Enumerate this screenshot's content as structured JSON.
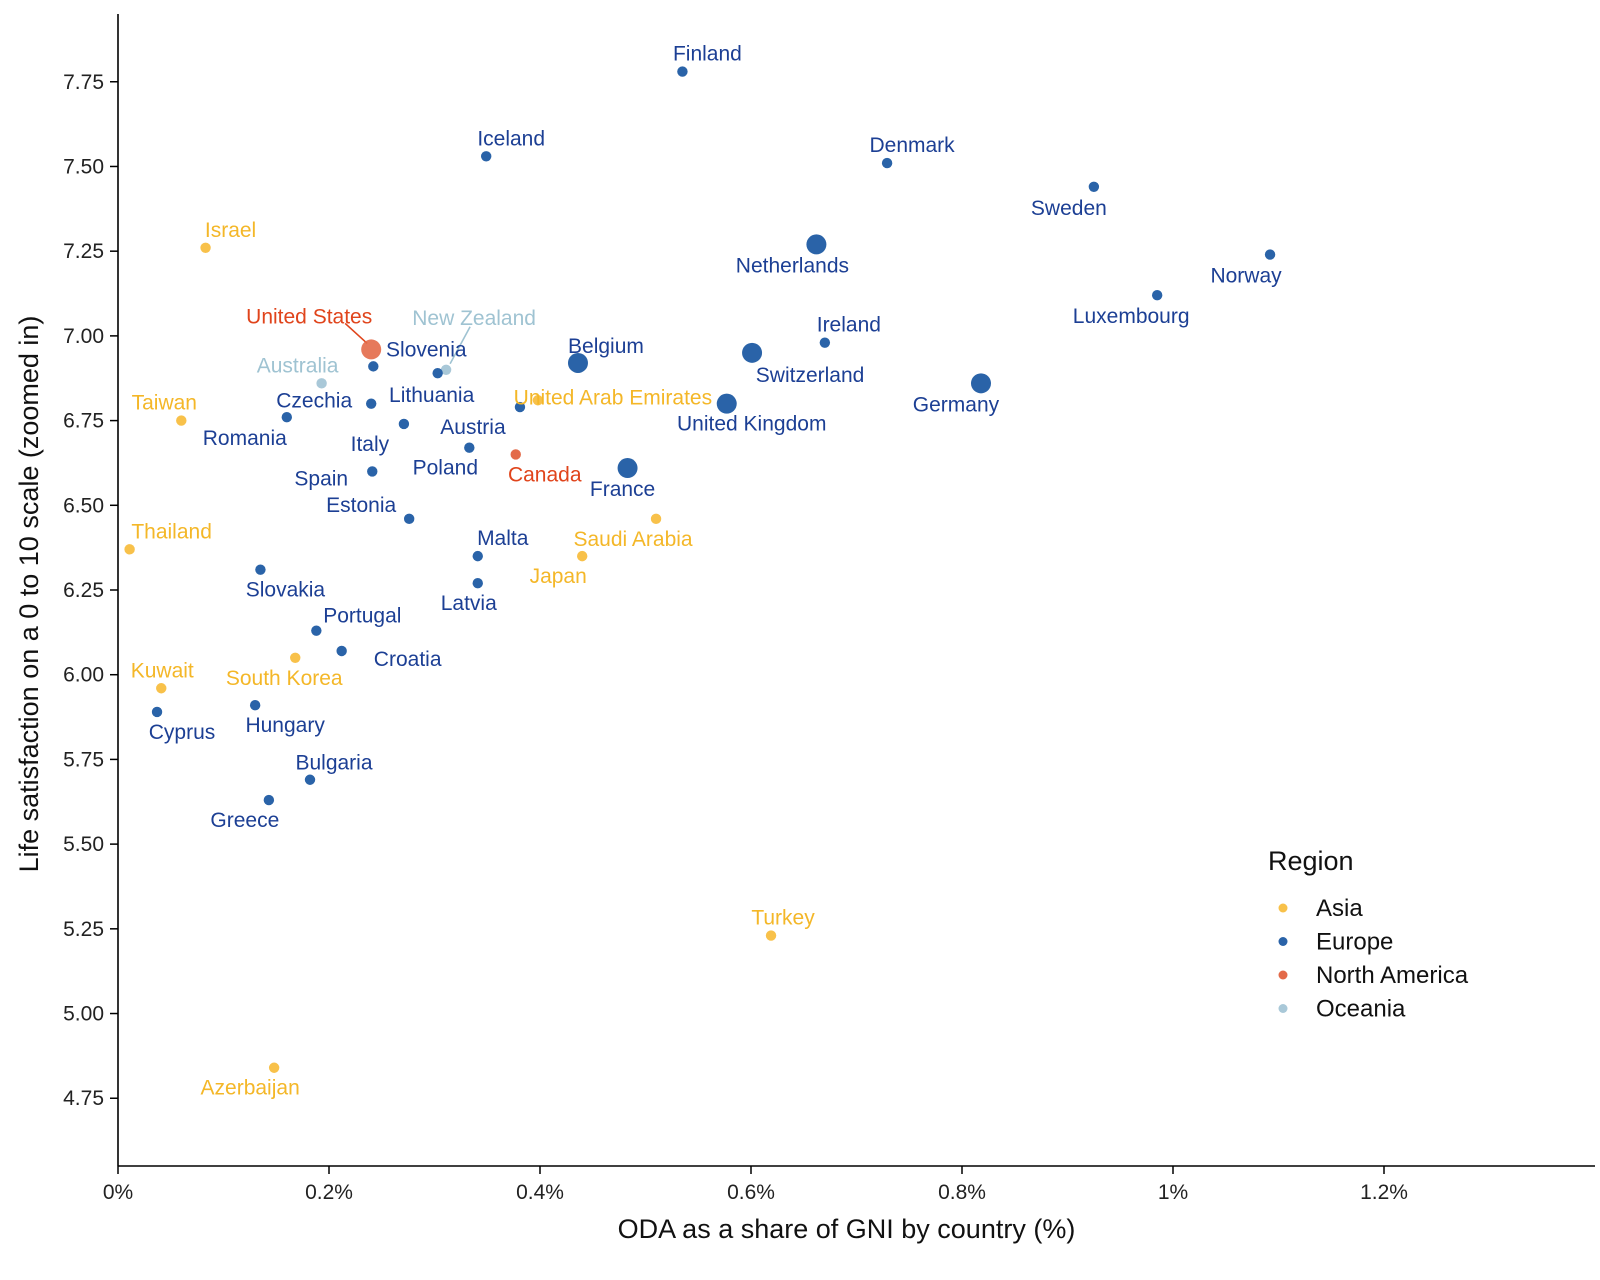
{
  "chart_data": {
    "type": "scatter",
    "xlabel": "ODA as a share of GNI by country (%)",
    "ylabel": "Life satisfaction on a 0 to 10 scale (zoomed in)",
    "xlim": [
      0,
      1.4
    ],
    "ylim": [
      4.55,
      7.95
    ],
    "x_ticks": [
      0,
      0.2,
      0.4,
      0.6,
      0.8,
      1.0,
      1.2
    ],
    "x_tick_labels": [
      "0%",
      "0.2%",
      "0.4%",
      "0.6%",
      "0.8%",
      "1%",
      "1.2%"
    ],
    "y_ticks": [
      4.75,
      5.0,
      5.25,
      5.5,
      5.75,
      6.0,
      6.25,
      6.5,
      6.75,
      7.0,
      7.25,
      7.5,
      7.75
    ],
    "y_tick_labels": [
      "4.75",
      "5.00",
      "5.25",
      "5.50",
      "5.75",
      "6.00",
      "6.25",
      "6.50",
      "6.75",
      "7.00",
      "7.25",
      "7.50",
      "7.75"
    ],
    "grid": false,
    "legend": {
      "title": "Region",
      "placement": "bottom-right",
      "entries": [
        {
          "name": "Asia",
          "color": "#f8c14a"
        },
        {
          "name": "Europe",
          "color": "#2a63a8"
        },
        {
          "name": "North America",
          "color": "#e36a49"
        },
        {
          "name": "Oceania",
          "color": "#a9c8d8"
        }
      ]
    },
    "label_colors": {
      "Asia": "#f4b728",
      "Europe": "#1c3f94",
      "North America": "#e0441b",
      "Oceania": "#9fc3d2"
    },
    "points": [
      {
        "country": "Finland",
        "region": "Europe",
        "x": 0.535,
        "y": 7.78,
        "size": "small"
      },
      {
        "country": "Iceland",
        "region": "Europe",
        "x": 0.349,
        "y": 7.53,
        "size": "small"
      },
      {
        "country": "Denmark",
        "region": "Europe",
        "x": 0.729,
        "y": 7.51,
        "size": "small"
      },
      {
        "country": "Sweden",
        "region": "Europe",
        "x": 0.925,
        "y": 7.44,
        "size": "small"
      },
      {
        "country": "Israel",
        "region": "Asia",
        "x": 0.083,
        "y": 7.26,
        "size": "small"
      },
      {
        "country": "Netherlands",
        "region": "Europe",
        "x": 0.662,
        "y": 7.27,
        "size": "large"
      },
      {
        "country": "Norway",
        "region": "Europe",
        "x": 1.092,
        "y": 7.24,
        "size": "small"
      },
      {
        "country": "Luxembourg",
        "region": "Europe",
        "x": 0.985,
        "y": 7.12,
        "size": "small"
      },
      {
        "country": "United States",
        "region": "North America",
        "x": 0.24,
        "y": 6.96,
        "size": "large"
      },
      {
        "country": "New Zealand",
        "region": "Oceania",
        "x": 0.311,
        "y": 6.9,
        "size": "small"
      },
      {
        "country": "Slovenia",
        "region": "Europe",
        "x": 0.242,
        "y": 6.91,
        "size": "small"
      },
      {
        "country": "Belgium",
        "region": "Europe",
        "x": 0.436,
        "y": 6.92,
        "size": "large"
      },
      {
        "country": "Ireland",
        "region": "Europe",
        "x": 0.67,
        "y": 6.98,
        "size": "small"
      },
      {
        "country": "Switzerland",
        "region": "Europe",
        "x": 0.601,
        "y": 6.95,
        "size": "large"
      },
      {
        "country": "Australia",
        "region": "Oceania",
        "x": 0.193,
        "y": 6.86,
        "size": "small"
      },
      {
        "country": "Lithuania",
        "region": "Europe",
        "x": 0.303,
        "y": 6.89,
        "size": "small"
      },
      {
        "country": "United Arab Emirates",
        "region": "Asia",
        "x": 0.398,
        "y": 6.81,
        "size": "small"
      },
      {
        "country": "Germany",
        "region": "Europe",
        "x": 0.818,
        "y": 6.86,
        "size": "large"
      },
      {
        "country": "Czechia",
        "region": "Europe",
        "x": 0.24,
        "y": 6.8,
        "size": "small"
      },
      {
        "country": "Taiwan",
        "region": "Asia",
        "x": 0.06,
        "y": 6.75,
        "size": "small"
      },
      {
        "country": "Romania",
        "region": "Europe",
        "x": 0.16,
        "y": 6.76,
        "size": "small"
      },
      {
        "country": "Italy",
        "region": "Europe",
        "x": 0.271,
        "y": 6.74,
        "size": "small"
      },
      {
        "country": "Austria",
        "region": "Europe",
        "x": 0.381,
        "y": 6.79,
        "size": "small"
      },
      {
        "country": "United Kingdom",
        "region": "Europe",
        "x": 0.577,
        "y": 6.8,
        "size": "large"
      },
      {
        "country": "Poland",
        "region": "Europe",
        "x": 0.333,
        "y": 6.67,
        "size": "small"
      },
      {
        "country": "Canada",
        "region": "North America",
        "x": 0.377,
        "y": 6.65,
        "size": "small"
      },
      {
        "country": "Spain",
        "region": "Europe",
        "x": 0.241,
        "y": 6.6,
        "size": "small"
      },
      {
        "country": "France",
        "region": "Europe",
        "x": 0.483,
        "y": 6.61,
        "size": "large"
      },
      {
        "country": "Estonia",
        "region": "Europe",
        "x": 0.276,
        "y": 6.46,
        "size": "small"
      },
      {
        "country": "Saudi Arabia",
        "region": "Asia",
        "x": 0.51,
        "y": 6.46,
        "size": "small"
      },
      {
        "country": "Thailand",
        "region": "Asia",
        "x": 0.011,
        "y": 6.37,
        "size": "small"
      },
      {
        "country": "Malta",
        "region": "Europe",
        "x": 0.341,
        "y": 6.35,
        "size": "small"
      },
      {
        "country": "Japan",
        "region": "Asia",
        "x": 0.44,
        "y": 6.35,
        "size": "small"
      },
      {
        "country": "Slovakia",
        "region": "Europe",
        "x": 0.135,
        "y": 6.31,
        "size": "small"
      },
      {
        "country": "Latvia",
        "region": "Europe",
        "x": 0.341,
        "y": 6.27,
        "size": "small"
      },
      {
        "country": "Portugal",
        "region": "Europe",
        "x": 0.188,
        "y": 6.13,
        "size": "small"
      },
      {
        "country": "Croatia",
        "region": "Europe",
        "x": 0.212,
        "y": 6.07,
        "size": "small"
      },
      {
        "country": "South Korea",
        "region": "Asia",
        "x": 0.168,
        "y": 6.05,
        "size": "small"
      },
      {
        "country": "Kuwait",
        "region": "Asia",
        "x": 0.041,
        "y": 5.96,
        "size": "small"
      },
      {
        "country": "Hungary",
        "region": "Europe",
        "x": 0.13,
        "y": 5.91,
        "size": "small"
      },
      {
        "country": "Cyprus",
        "region": "Europe",
        "x": 0.037,
        "y": 5.89,
        "size": "small"
      },
      {
        "country": "Bulgaria",
        "region": "Europe",
        "x": 0.182,
        "y": 5.69,
        "size": "small"
      },
      {
        "country": "Greece",
        "region": "Europe",
        "x": 0.143,
        "y": 5.63,
        "size": "small"
      },
      {
        "country": "Turkey",
        "region": "Asia",
        "x": 0.619,
        "y": 5.23,
        "size": "small"
      },
      {
        "country": "Azerbaijan",
        "region": "Asia",
        "x": 0.148,
        "y": 4.84,
        "size": "small"
      }
    ]
  }
}
